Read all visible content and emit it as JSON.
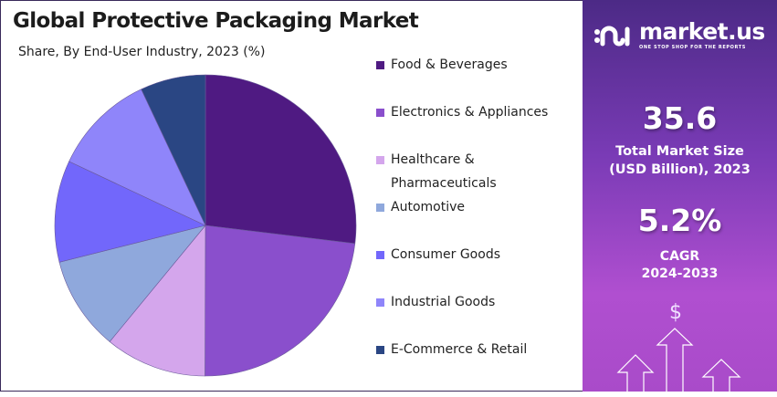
{
  "title": "Global Protective Packaging Market",
  "subtitle": "Share, By End-User Industry, 2023 (%)",
  "chart_data": {
    "type": "pie",
    "title": "Global Protective Packaging Market",
    "subtitle": "Share, By End-User Industry, 2023 (%)",
    "start_angle": "top",
    "direction": "clockwise",
    "legend_position": "right",
    "categories": [
      "Food & Beverages",
      "Electronics & Appliances",
      "Healthcare & Pharmaceuticals",
      "Automotive",
      "Consumer Goods",
      "Industrial Goods",
      "E-Commerce & Retail"
    ],
    "legend_labels": [
      [
        "Food & Beverages"
      ],
      [
        "Electronics & Appliances"
      ],
      [
        "Healthcare &",
        "Pharmaceuticals"
      ],
      [
        "Automotive"
      ],
      [
        "Consumer Goods"
      ],
      [
        "Industrial Goods"
      ],
      [
        "E-Commerce & Retail"
      ]
    ],
    "values": [
      26.9,
      23.1,
      10.9,
      10.1,
      10.9,
      11.0,
      7.0
    ],
    "colors": [
      "#4f1a82",
      "#8a4fcc",
      "#d4a6ec",
      "#8fa8dc",
      "#7267fb",
      "#8f85fa",
      "#2a4683"
    ]
  },
  "panel": {
    "brand": "market.us",
    "tagline": "ONE STOP SHOP FOR THE REPORTS",
    "market_size": "35.6",
    "market_size_label_1": "Total Market Size",
    "market_size_label_2": "(USD Billion), 2023",
    "cagr": "5.2%",
    "cagr_label_1": "CAGR",
    "cagr_label_2": "2024-2033",
    "dollar_symbol": "$"
  }
}
